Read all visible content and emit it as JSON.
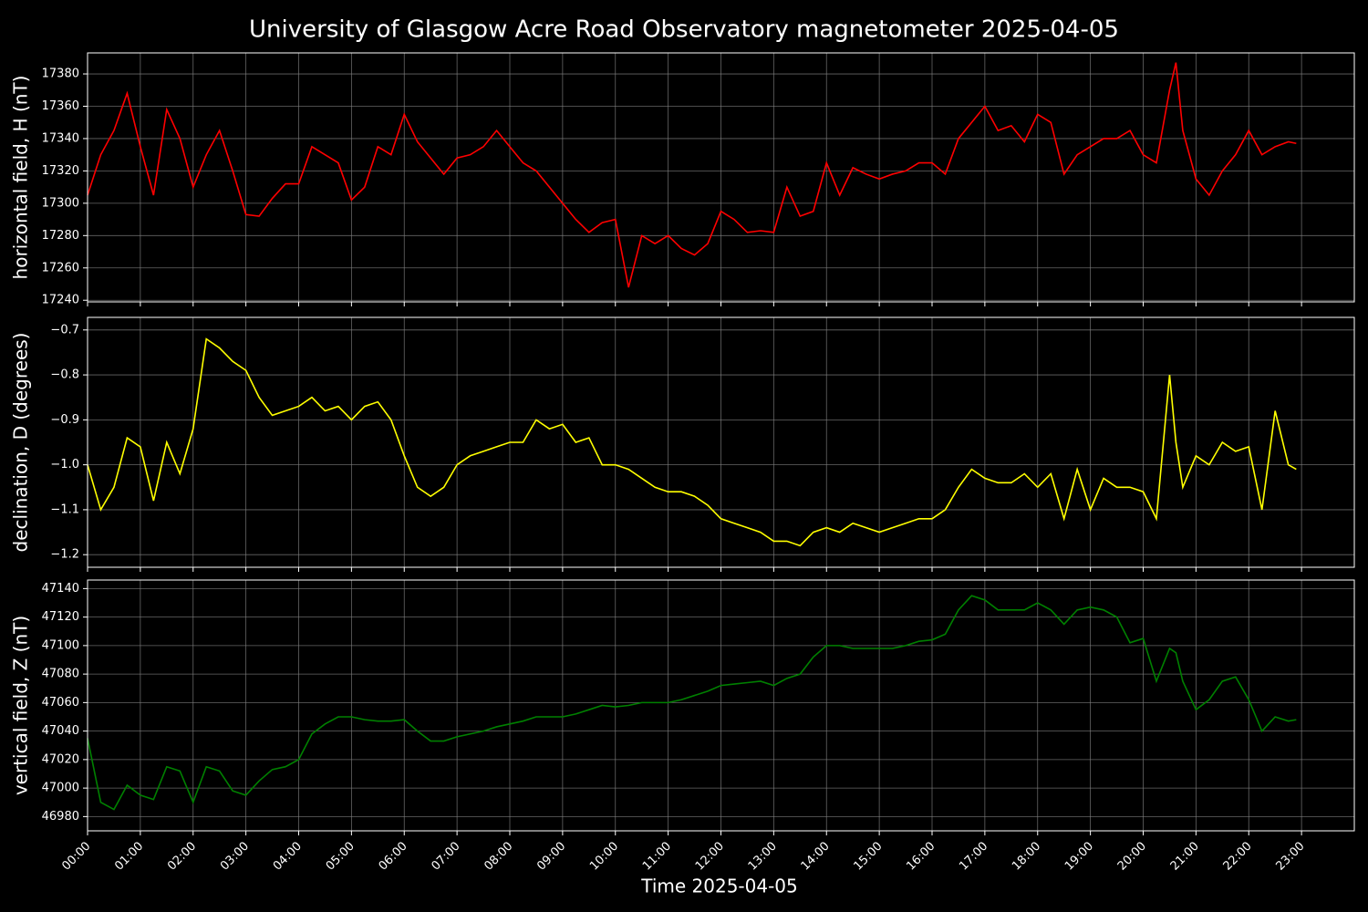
{
  "chart_data": [
    {
      "type": "line",
      "title": "University of Glasgow Acre Road Observatory magnetometer 2025-04-05",
      "ylabel": "horizontal field, H (nT)",
      "color": "#ff0000",
      "grid": true,
      "x": [
        0,
        0.25,
        0.5,
        0.75,
        1,
        1.25,
        1.5,
        1.75,
        2,
        2.25,
        2.5,
        2.75,
        3,
        3.25,
        3.5,
        3.75,
        4,
        4.25,
        4.5,
        4.75,
        5,
        5.25,
        5.5,
        5.75,
        6,
        6.25,
        6.5,
        6.75,
        7,
        7.25,
        7.5,
        7.75,
        8,
        8.25,
        8.5,
        8.75,
        9,
        9.25,
        9.5,
        9.75,
        10,
        10.25,
        10.5,
        10.75,
        11,
        11.25,
        11.5,
        11.75,
        12,
        12.25,
        12.5,
        12.75,
        13,
        13.25,
        13.5,
        13.75,
        14,
        14.25,
        14.5,
        14.75,
        15,
        15.25,
        15.5,
        15.75,
        16,
        16.25,
        16.5,
        16.75,
        17,
        17.25,
        17.5,
        17.75,
        18,
        18.25,
        18.5,
        18.75,
        19,
        19.25,
        19.5,
        19.75,
        20,
        20.25,
        20.5,
        20.62,
        20.75,
        21,
        21.25,
        21.5,
        21.75,
        22,
        22.25,
        22.5,
        22.75,
        22.9
      ],
      "values": [
        17305,
        17330,
        17345,
        17368,
        17335,
        17305,
        17358,
        17340,
        17310,
        17330,
        17345,
        17320,
        17293,
        17292,
        17303,
        17312,
        17312,
        17335,
        17330,
        17325,
        17302,
        17310,
        17335,
        17330,
        17355,
        17338,
        17328,
        17318,
        17328,
        17330,
        17335,
        17345,
        17335,
        17325,
        17320,
        17310,
        17300,
        17290,
        17282,
        17288,
        17290,
        17248,
        17280,
        17275,
        17280,
        17272,
        17268,
        17275,
        17295,
        17290,
        17282,
        17283,
        17282,
        17310,
        17292,
        17295,
        17325,
        17305,
        17322,
        17318,
        17315,
        17318,
        17320,
        17325,
        17325,
        17318,
        17340,
        17350,
        17360,
        17345,
        17348,
        17338,
        17355,
        17350,
        17318,
        17330,
        17335,
        17340,
        17340,
        17345,
        17330,
        17325,
        17370,
        17387,
        17345,
        17315,
        17305,
        17320,
        17330,
        17345,
        17330,
        17335,
        17338,
        17337
      ],
      "xlim": [
        0,
        24
      ],
      "xticks": [
        0,
        1,
        2,
        3,
        4,
        5,
        6,
        7,
        8,
        9,
        10,
        11,
        12,
        13,
        14,
        15,
        16,
        17,
        18,
        19,
        20,
        21,
        22,
        23
      ],
      "ylim": [
        17239,
        17393
      ],
      "yticks": [
        17240,
        17260,
        17280,
        17300,
        17320,
        17340,
        17360,
        17380
      ]
    },
    {
      "type": "line",
      "ylabel": "declination, D (degrees)",
      "color": "#ffff00",
      "grid": true,
      "x": [
        0,
        0.25,
        0.5,
        0.75,
        1,
        1.25,
        1.5,
        1.75,
        2,
        2.25,
        2.5,
        2.75,
        3,
        3.25,
        3.5,
        3.75,
        4,
        4.25,
        4.5,
        4.75,
        5,
        5.25,
        5.5,
        5.75,
        6,
        6.25,
        6.5,
        6.75,
        7,
        7.25,
        7.5,
        7.75,
        8,
        8.25,
        8.5,
        8.75,
        9,
        9.25,
        9.5,
        9.75,
        10,
        10.25,
        10.5,
        10.75,
        11,
        11.25,
        11.5,
        11.75,
        12,
        12.25,
        12.5,
        12.75,
        13,
        13.25,
        13.5,
        13.75,
        14,
        14.25,
        14.5,
        14.75,
        15,
        15.25,
        15.5,
        15.75,
        16,
        16.25,
        16.5,
        16.75,
        17,
        17.25,
        17.5,
        17.75,
        18,
        18.25,
        18.5,
        18.75,
        19,
        19.25,
        19.5,
        19.75,
        20,
        20.25,
        20.5,
        20.62,
        20.75,
        21,
        21.25,
        21.5,
        21.75,
        22,
        22.25,
        22.5,
        22.75,
        22.9
      ],
      "values": [
        -1.0,
        -1.1,
        -1.05,
        -0.94,
        -0.96,
        -1.08,
        -0.95,
        -1.02,
        -0.92,
        -0.72,
        -0.74,
        -0.77,
        -0.79,
        -0.85,
        -0.89,
        -0.88,
        -0.87,
        -0.85,
        -0.88,
        -0.87,
        -0.9,
        -0.87,
        -0.86,
        -0.9,
        -0.98,
        -1.05,
        -1.07,
        -1.05,
        -1.0,
        -0.98,
        -0.97,
        -0.96,
        -0.95,
        -0.95,
        -0.9,
        -0.92,
        -0.91,
        -0.95,
        -0.94,
        -1.0,
        -1.0,
        -1.01,
        -1.03,
        -1.05,
        -1.06,
        -1.06,
        -1.07,
        -1.09,
        -1.12,
        -1.13,
        -1.14,
        -1.15,
        -1.17,
        -1.17,
        -1.18,
        -1.15,
        -1.14,
        -1.15,
        -1.13,
        -1.14,
        -1.15,
        -1.14,
        -1.13,
        -1.12,
        -1.12,
        -1.1,
        -1.05,
        -1.01,
        -1.03,
        -1.04,
        -1.04,
        -1.02,
        -1.05,
        -1.02,
        -1.12,
        -1.01,
        -1.1,
        -1.03,
        -1.05,
        -1.05,
        -1.06,
        -1.12,
        -0.8,
        -0.95,
        -1.05,
        -0.98,
        -1.0,
        -0.95,
        -0.97,
        -0.96,
        -1.1,
        -0.88,
        -1.0,
        -1.01
      ],
      "xlim": [
        0,
        24
      ],
      "xticks": [
        0,
        1,
        2,
        3,
        4,
        5,
        6,
        7,
        8,
        9,
        10,
        11,
        12,
        13,
        14,
        15,
        16,
        17,
        18,
        19,
        20,
        21,
        22,
        23
      ],
      "ylim": [
        -1.228,
        -0.672
      ],
      "yticks": [
        {
          "value": -1.2,
          "label": "−1.2"
        },
        {
          "value": -1.1,
          "label": "−1.1"
        },
        {
          "value": -1.0,
          "label": "−1.0"
        },
        {
          "value": -0.9,
          "label": "−0.9"
        },
        {
          "value": -0.8,
          "label": "−0.8"
        },
        {
          "value": -0.7,
          "label": "−0.7"
        }
      ]
    },
    {
      "type": "line",
      "ylabel": "vertical field, Z (nT)",
      "xlabel": "Time 2025-04-05",
      "color": "#008000",
      "grid": true,
      "x": [
        0,
        0.25,
        0.5,
        0.75,
        1,
        1.25,
        1.5,
        1.75,
        2,
        2.25,
        2.5,
        2.75,
        3,
        3.25,
        3.5,
        3.75,
        4,
        4.25,
        4.5,
        4.75,
        5,
        5.25,
        5.5,
        5.75,
        6,
        6.25,
        6.5,
        6.75,
        7,
        7.25,
        7.5,
        7.75,
        8,
        8.25,
        8.5,
        8.75,
        9,
        9.25,
        9.5,
        9.75,
        10,
        10.25,
        10.5,
        10.75,
        11,
        11.25,
        11.5,
        11.75,
        12,
        12.25,
        12.5,
        12.75,
        13,
        13.25,
        13.5,
        13.75,
        14,
        14.25,
        14.5,
        14.75,
        15,
        15.25,
        15.5,
        15.75,
        16,
        16.25,
        16.5,
        16.75,
        17,
        17.25,
        17.5,
        17.75,
        18,
        18.25,
        18.5,
        18.75,
        19,
        19.25,
        19.5,
        19.75,
        20,
        20.25,
        20.5,
        20.62,
        20.75,
        21,
        21.25,
        21.5,
        21.75,
        22,
        22.25,
        22.5,
        22.75,
        22.9
      ],
      "values": [
        47035,
        46990,
        46985,
        47002,
        46995,
        46992,
        47015,
        47012,
        46990,
        47015,
        47012,
        46998,
        46995,
        47005,
        47013,
        47015,
        47020,
        47038,
        47045,
        47050,
        47050,
        47048,
        47047,
        47047,
        47048,
        47040,
        47033,
        47033,
        47036,
        47038,
        47040,
        47043,
        47045,
        47047,
        47050,
        47050,
        47050,
        47052,
        47055,
        47058,
        47057,
        47058,
        47060,
        47060,
        47060,
        47062,
        47065,
        47068,
        47072,
        47073,
        47074,
        47075,
        47072,
        47077,
        47080,
        47092,
        47100,
        47100,
        47098,
        47098,
        47098,
        47098,
        47100,
        47103,
        47104,
        47108,
        47125,
        47135,
        47132,
        47125,
        47125,
        47125,
        47130,
        47125,
        47115,
        47125,
        47127,
        47125,
        47120,
        47102,
        47105,
        47075,
        47098,
        47095,
        47075,
        47055,
        47062,
        47075,
        47078,
        47062,
        47040,
        47050,
        47047,
        47048
      ],
      "xlim": [
        0,
        24
      ],
      "xticks": [
        {
          "value": 0,
          "label": "00:00"
        },
        {
          "value": 1,
          "label": "01:00"
        },
        {
          "value": 2,
          "label": "02:00"
        },
        {
          "value": 3,
          "label": "03:00"
        },
        {
          "value": 4,
          "label": "04:00"
        },
        {
          "value": 5,
          "label": "05:00"
        },
        {
          "value": 6,
          "label": "06:00"
        },
        {
          "value": 7,
          "label": "07:00"
        },
        {
          "value": 8,
          "label": "08:00"
        },
        {
          "value": 9,
          "label": "09:00"
        },
        {
          "value": 10,
          "label": "10:00"
        },
        {
          "value": 11,
          "label": "11:00"
        },
        {
          "value": 12,
          "label": "12:00"
        },
        {
          "value": 13,
          "label": "13:00"
        },
        {
          "value": 14,
          "label": "14:00"
        },
        {
          "value": 15,
          "label": "15:00"
        },
        {
          "value": 16,
          "label": "16:00"
        },
        {
          "value": 17,
          "label": "17:00"
        },
        {
          "value": 18,
          "label": "18:00"
        },
        {
          "value": 19,
          "label": "19:00"
        },
        {
          "value": 20,
          "label": "20:00"
        },
        {
          "value": 21,
          "label": "21:00"
        },
        {
          "value": 22,
          "label": "22:00"
        },
        {
          "value": 23,
          "label": "23:00"
        }
      ],
      "ylim": [
        46970,
        47146
      ],
      "yticks": [
        46980,
        47000,
        47020,
        47040,
        47060,
        47080,
        47100,
        47120,
        47140
      ]
    }
  ]
}
